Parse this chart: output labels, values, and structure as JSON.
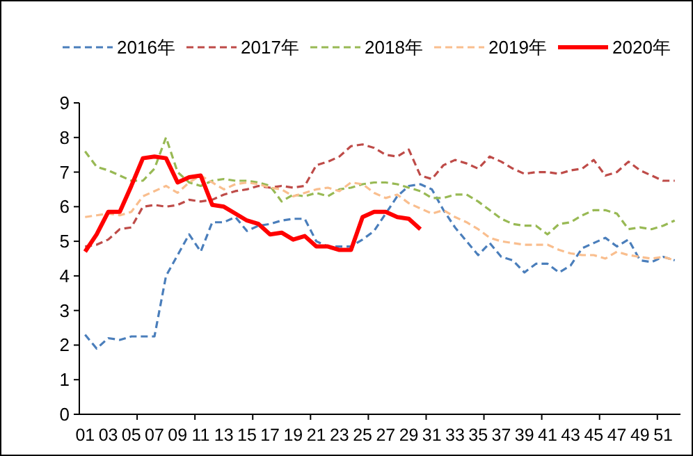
{
  "chart_data": {
    "type": "line",
    "categories": [
      "01",
      null,
      "03",
      null,
      "05",
      null,
      "07",
      null,
      "09",
      null,
      "11",
      null,
      "13",
      null,
      "15",
      null,
      "17",
      null,
      "19",
      null,
      "21",
      null,
      "23",
      null,
      "25",
      null,
      "27",
      null,
      "29",
      null,
      "31",
      null,
      "33",
      null,
      "35",
      null,
      "37",
      null,
      "39",
      null,
      "41",
      null,
      "43",
      null,
      "45",
      null,
      "47",
      null,
      "49",
      null,
      "51",
      null
    ],
    "ylim": [
      0,
      9
    ],
    "yticks": [
      0,
      1,
      2,
      3,
      4,
      5,
      6,
      7,
      8,
      9
    ],
    "grid": false,
    "legend": "top",
    "marker": "none",
    "series": [
      {
        "name": "2016年",
        "color": "#4a7ebb",
        "line_style": "dashed",
        "values": [
          2.3,
          1.9,
          2.2,
          2.15,
          2.25,
          2.25,
          2.25,
          4.0,
          4.6,
          5.2,
          4.7,
          5.55,
          5.55,
          5.7,
          5.3,
          5.45,
          5.5,
          5.6,
          5.65,
          5.65,
          5.0,
          4.85,
          4.85,
          4.85,
          5.05,
          5.3,
          5.8,
          6.3,
          6.6,
          6.65,
          6.5,
          5.9,
          5.4,
          5.0,
          4.6,
          4.95,
          4.55,
          4.45,
          4.1,
          4.35,
          4.35,
          4.1,
          4.3,
          4.8,
          4.95,
          5.1,
          4.85,
          5.05,
          4.45,
          4.4,
          4.55,
          4.45
        ]
      },
      {
        "name": "2017年",
        "color": "#be4b48",
        "line_style": "dashed",
        "values": [
          4.85,
          4.9,
          5.05,
          5.35,
          5.4,
          6.0,
          6.05,
          6.0,
          6.05,
          6.2,
          6.15,
          6.2,
          6.35,
          6.45,
          6.5,
          6.6,
          6.55,
          6.6,
          6.55,
          6.6,
          7.2,
          7.3,
          7.45,
          7.75,
          7.8,
          7.7,
          7.5,
          7.45,
          7.65,
          6.9,
          6.8,
          7.2,
          7.35,
          7.25,
          7.1,
          7.45,
          7.3,
          7.1,
          6.95,
          7.0,
          7.0,
          6.95,
          7.05,
          7.1,
          7.35,
          6.9,
          7.0,
          7.3,
          7.05,
          6.9,
          6.75,
          6.75
        ]
      },
      {
        "name": "2018年",
        "color": "#98b954",
        "line_style": "dashed",
        "values": [
          7.6,
          7.15,
          7.05,
          6.9,
          6.75,
          6.75,
          7.1,
          8.0,
          7.0,
          6.7,
          6.6,
          6.75,
          6.8,
          6.75,
          6.75,
          6.7,
          6.6,
          6.15,
          6.35,
          6.3,
          6.4,
          6.3,
          6.5,
          6.55,
          6.65,
          6.7,
          6.7,
          6.65,
          6.55,
          6.45,
          6.25,
          6.25,
          6.35,
          6.35,
          6.15,
          5.9,
          5.65,
          5.5,
          5.45,
          5.45,
          5.2,
          5.5,
          5.55,
          5.75,
          5.9,
          5.9,
          5.8,
          5.35,
          5.4,
          5.35,
          5.45,
          5.6
        ]
      },
      {
        "name": "2019年",
        "color": "#f9be8e",
        "line_style": "dashed",
        "values": [
          5.7,
          5.75,
          5.8,
          5.75,
          5.85,
          6.3,
          6.45,
          6.6,
          6.4,
          6.7,
          6.9,
          6.7,
          6.5,
          6.65,
          6.7,
          6.65,
          6.55,
          6.5,
          6.3,
          6.4,
          6.5,
          6.55,
          6.45,
          6.7,
          6.65,
          6.4,
          6.25,
          6.35,
          6.1,
          5.95,
          5.8,
          5.9,
          5.7,
          5.55,
          5.35,
          5.1,
          5.0,
          4.95,
          4.9,
          4.9,
          4.9,
          4.75,
          4.65,
          4.6,
          4.6,
          4.5,
          4.7,
          4.6,
          4.55,
          4.5,
          4.55,
          4.45
        ]
      },
      {
        "name": "2020年",
        "color": "#ff0000",
        "line_style": "solid",
        "values": [
          4.7,
          5.2,
          5.85,
          5.85,
          6.6,
          7.4,
          7.45,
          7.4,
          6.7,
          6.85,
          6.9,
          6.05,
          6.0,
          5.8,
          5.6,
          5.5,
          5.2,
          5.25,
          5.05,
          5.15,
          4.85,
          4.85,
          4.75,
          4.75,
          5.7,
          5.85,
          5.85,
          5.7,
          5.65,
          5.35,
          null,
          null,
          null,
          null,
          null,
          null,
          null,
          null,
          null,
          null,
          null,
          null,
          null,
          null,
          null,
          null,
          null,
          null,
          null,
          null,
          null,
          null
        ]
      }
    ]
  }
}
